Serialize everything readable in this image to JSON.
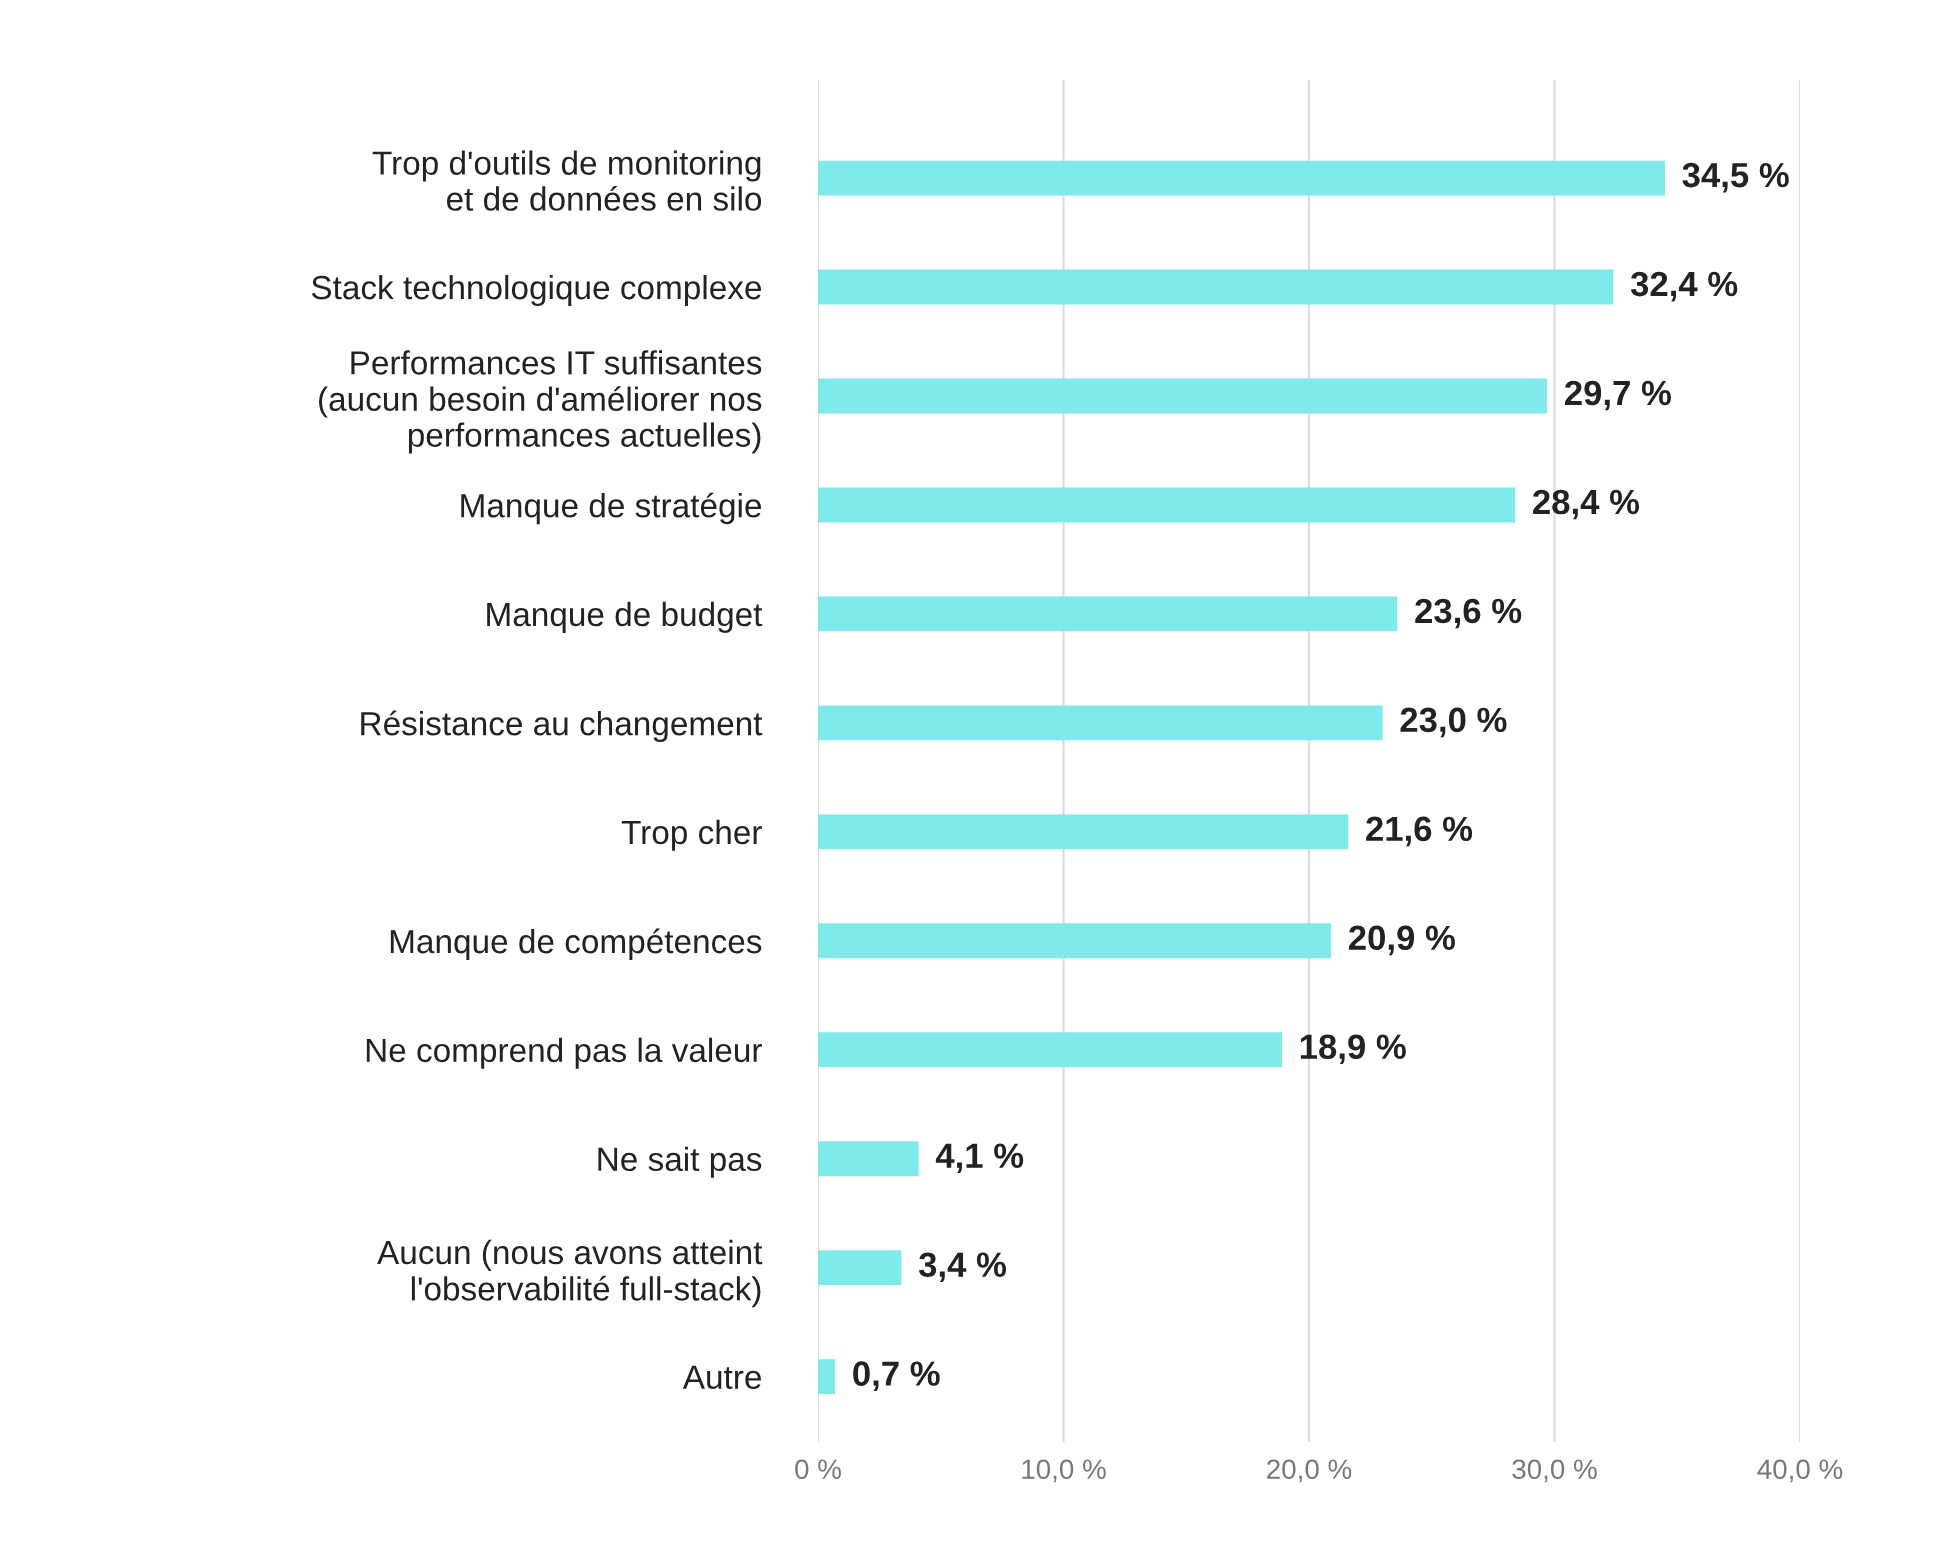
{
  "chart_data": {
    "type": "bar",
    "orientation": "horizontal",
    "categories": [
      "Trop d'outils de monitoring\net de données en silo",
      "Stack technologique complexe",
      "Performances IT suffisantes\n(aucun besoin d'améliorer nos\nperformances actuelles)",
      "Manque de stratégie",
      "Manque de budget",
      "Résistance au changement",
      "Trop cher",
      "Manque de compétences",
      "Ne comprend pas la valeur",
      "Ne sait pas",
      "Aucun (nous avons atteint\nl'observabilité full-stack)",
      "Autre"
    ],
    "values": [
      34.5,
      32.4,
      29.7,
      28.4,
      23.6,
      23.0,
      21.6,
      20.9,
      18.9,
      4.1,
      3.4,
      0.7
    ],
    "value_labels": [
      "34,5 %",
      "32,4 %",
      "29,7 %",
      "28,4 %",
      "23,6 %",
      "23,0 %",
      "21,6 %",
      "20,9 %",
      "18,9 %",
      "4,1 %",
      "3,4 %",
      "0,7 %"
    ],
    "color": "#80e9ec",
    "xlim": [
      0,
      40
    ],
    "xticks": [
      {
        "value": 0,
        "label": "0 %"
      },
      {
        "value": 10,
        "label": "10,0 %"
      },
      {
        "value": 20,
        "label": "20,0 %"
      },
      {
        "value": 30,
        "label": "30,0 %"
      },
      {
        "value": 40,
        "label": "40,0 %"
      }
    ],
    "grid": "x"
  }
}
